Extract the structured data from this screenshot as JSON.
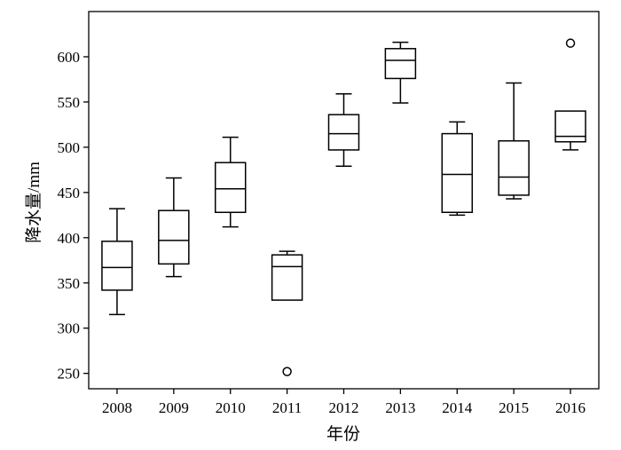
{
  "chart_data": {
    "type": "boxplot",
    "xlabel": "年份",
    "ylabel": "降水量/mm",
    "ylim": [
      233,
      650
    ],
    "yticks": [
      250,
      300,
      350,
      400,
      450,
      500,
      550,
      600
    ],
    "categories": [
      "2008",
      "2009",
      "2010",
      "2011",
      "2012",
      "2013",
      "2014",
      "2015",
      "2016"
    ],
    "boxes": [
      {
        "category": "2008",
        "whisker_low": 315,
        "q1": 342,
        "median": 367,
        "q3": 396,
        "whisker_high": 432,
        "outliers": []
      },
      {
        "category": "2009",
        "whisker_low": 357,
        "q1": 371,
        "median": 397,
        "q3": 430,
        "whisker_high": 466,
        "outliers": []
      },
      {
        "category": "2010",
        "whisker_low": 412,
        "q1": 428,
        "median": 454,
        "q3": 483,
        "whisker_high": 511,
        "outliers": []
      },
      {
        "category": "2011",
        "whisker_low": 331,
        "q1": 331,
        "median": 368,
        "q3": 381,
        "whisker_high": 385,
        "outliers": [
          252
        ]
      },
      {
        "category": "2012",
        "whisker_low": 479,
        "q1": 497,
        "median": 515,
        "q3": 536,
        "whisker_high": 559,
        "outliers": []
      },
      {
        "category": "2013",
        "whisker_low": 549,
        "q1": 576,
        "median": 596,
        "q3": 609,
        "whisker_high": 616,
        "outliers": []
      },
      {
        "category": "2014",
        "whisker_low": 425,
        "q1": 428,
        "median": 470,
        "q3": 515,
        "whisker_high": 528,
        "outliers": []
      },
      {
        "category": "2015",
        "whisker_low": 443,
        "q1": 447,
        "median": 467,
        "q3": 507,
        "whisker_high": 571,
        "outliers": []
      },
      {
        "category": "2016",
        "whisker_low": 497,
        "q1": 506,
        "median": 512,
        "q3": 540,
        "whisker_high": 540,
        "outliers": [
          615
        ]
      }
    ]
  }
}
